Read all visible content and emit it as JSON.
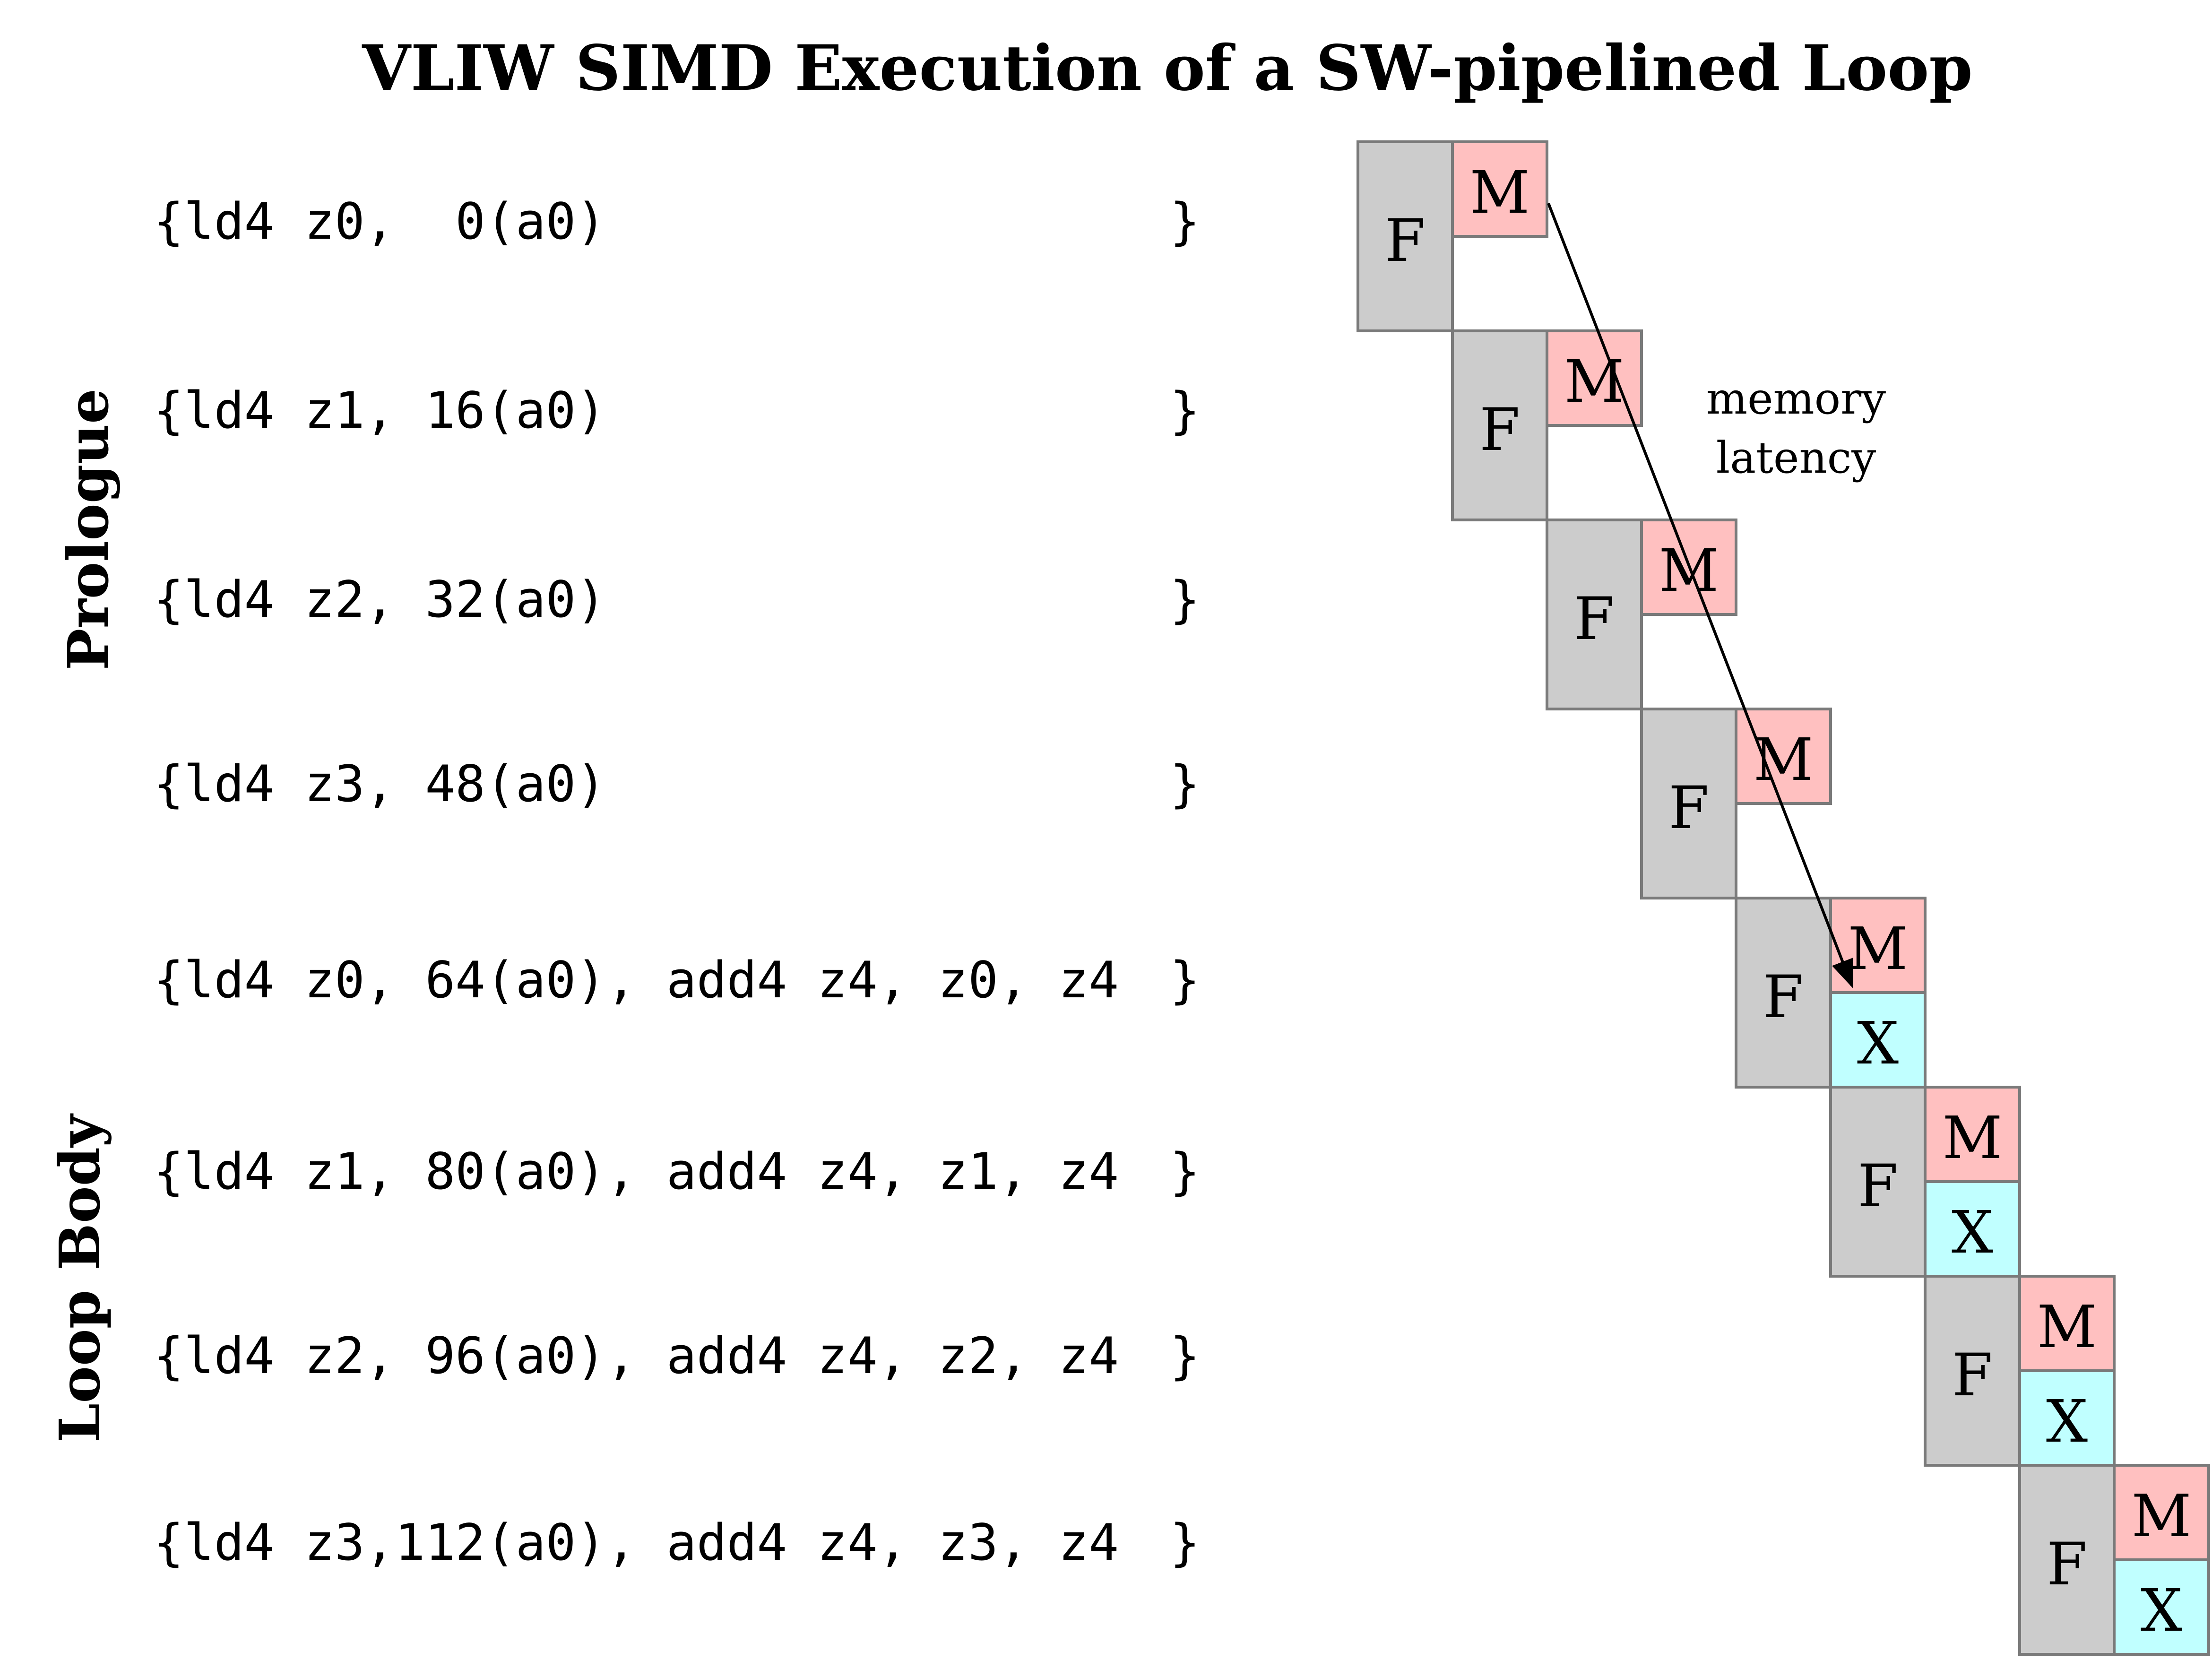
{
  "title": "VLIW SIMD Execution of a SW-pipelined Loop",
  "sections": [
    {
      "label": "Prologue"
    },
    {
      "label": "Loop Body"
    }
  ],
  "instructions": [
    {
      "text": "{ld4 z0,  0(a0)",
      "close": "}"
    },
    {
      "text": "{ld4 z1, 16(a0)",
      "close": "}"
    },
    {
      "text": "{ld4 z2, 32(a0)",
      "close": "}"
    },
    {
      "text": "{ld4 z3, 48(a0)",
      "close": "}"
    },
    {
      "text": "{ld4 z0, 64(a0), add4 z4, z0, z4",
      "close": "}"
    },
    {
      "text": "{ld4 z1, 80(a0), add4 z4, z1, z4",
      "close": "}"
    },
    {
      "text": "{ld4 z2, 96(a0), add4 z4, z2, z4",
      "close": "}"
    },
    {
      "text": "{ld4 z3,112(a0), add4 z4, z3, z4",
      "close": "}"
    }
  ],
  "stages": [
    {
      "fetch": "F",
      "memory": "M"
    },
    {
      "fetch": "F",
      "memory": "M"
    },
    {
      "fetch": "F",
      "memory": "M"
    },
    {
      "fetch": "F",
      "memory": "M"
    },
    {
      "fetch": "F",
      "memory": "M",
      "execute": "X"
    },
    {
      "fetch": "F",
      "memory": "M",
      "execute": "X"
    },
    {
      "fetch": "F",
      "memory": "M",
      "execute": "X"
    },
    {
      "fetch": "F",
      "memory": "M",
      "execute": "X"
    }
  ],
  "annotation": {
    "line1": "memory",
    "line2": "latency"
  },
  "colors": {
    "fetch": "#cccccc",
    "memory": "#ffc0c0",
    "execute": "#c0ffff",
    "border": "#7a7a7a"
  }
}
